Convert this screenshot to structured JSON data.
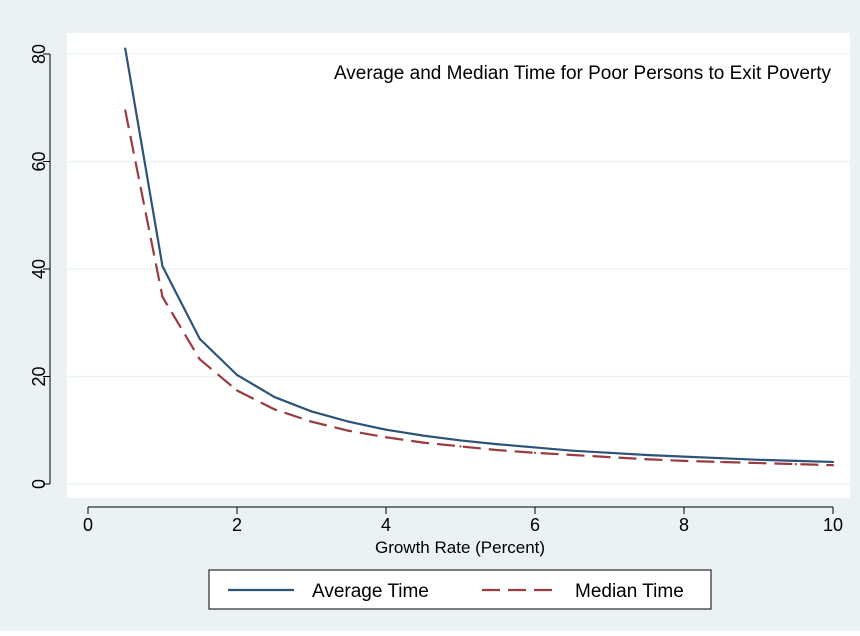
{
  "chart_data": {
    "type": "line",
    "title": "Average and Median Time for Poor Persons to Exit Poverty",
    "xlabel": "Growth Rate (Percent)",
    "ylabel": "",
    "xlim": [
      0,
      10
    ],
    "ylim": [
      0,
      80
    ],
    "x_ticks": [
      0,
      2,
      4,
      6,
      8,
      10
    ],
    "y_ticks": [
      0,
      20,
      40,
      60,
      80
    ],
    "grid": "horizontal",
    "legend_position": "bottom",
    "x": [
      0.5,
      1,
      1.5,
      2,
      2.5,
      3,
      3.5,
      4,
      4.5,
      5,
      5.5,
      6,
      6.5,
      7,
      7.5,
      8,
      8.5,
      9,
      9.5,
      10
    ],
    "series": [
      {
        "name": "Average Time",
        "color": "#2c5378",
        "dash": "solid",
        "values": [
          81,
          40.5,
          27,
          20.3,
          16.2,
          13.5,
          11.6,
          10.1,
          9.0,
          8.1,
          7.4,
          6.8,
          6.2,
          5.8,
          5.4,
          5.1,
          4.8,
          4.5,
          4.3,
          4.1
        ]
      },
      {
        "name": "Median Time",
        "color": "#9b3a3f",
        "dash": "dashed",
        "values": [
          69.5,
          34.8,
          23.2,
          17.4,
          13.9,
          11.6,
          9.9,
          8.7,
          7.7,
          7.0,
          6.3,
          5.8,
          5.4,
          5.0,
          4.6,
          4.3,
          4.1,
          3.9,
          3.7,
          3.5
        ]
      }
    ],
    "colors": {
      "plot_background": "#ffffff",
      "outer_background": "#eaf2f3",
      "gridline": "#eaf2f3"
    }
  }
}
